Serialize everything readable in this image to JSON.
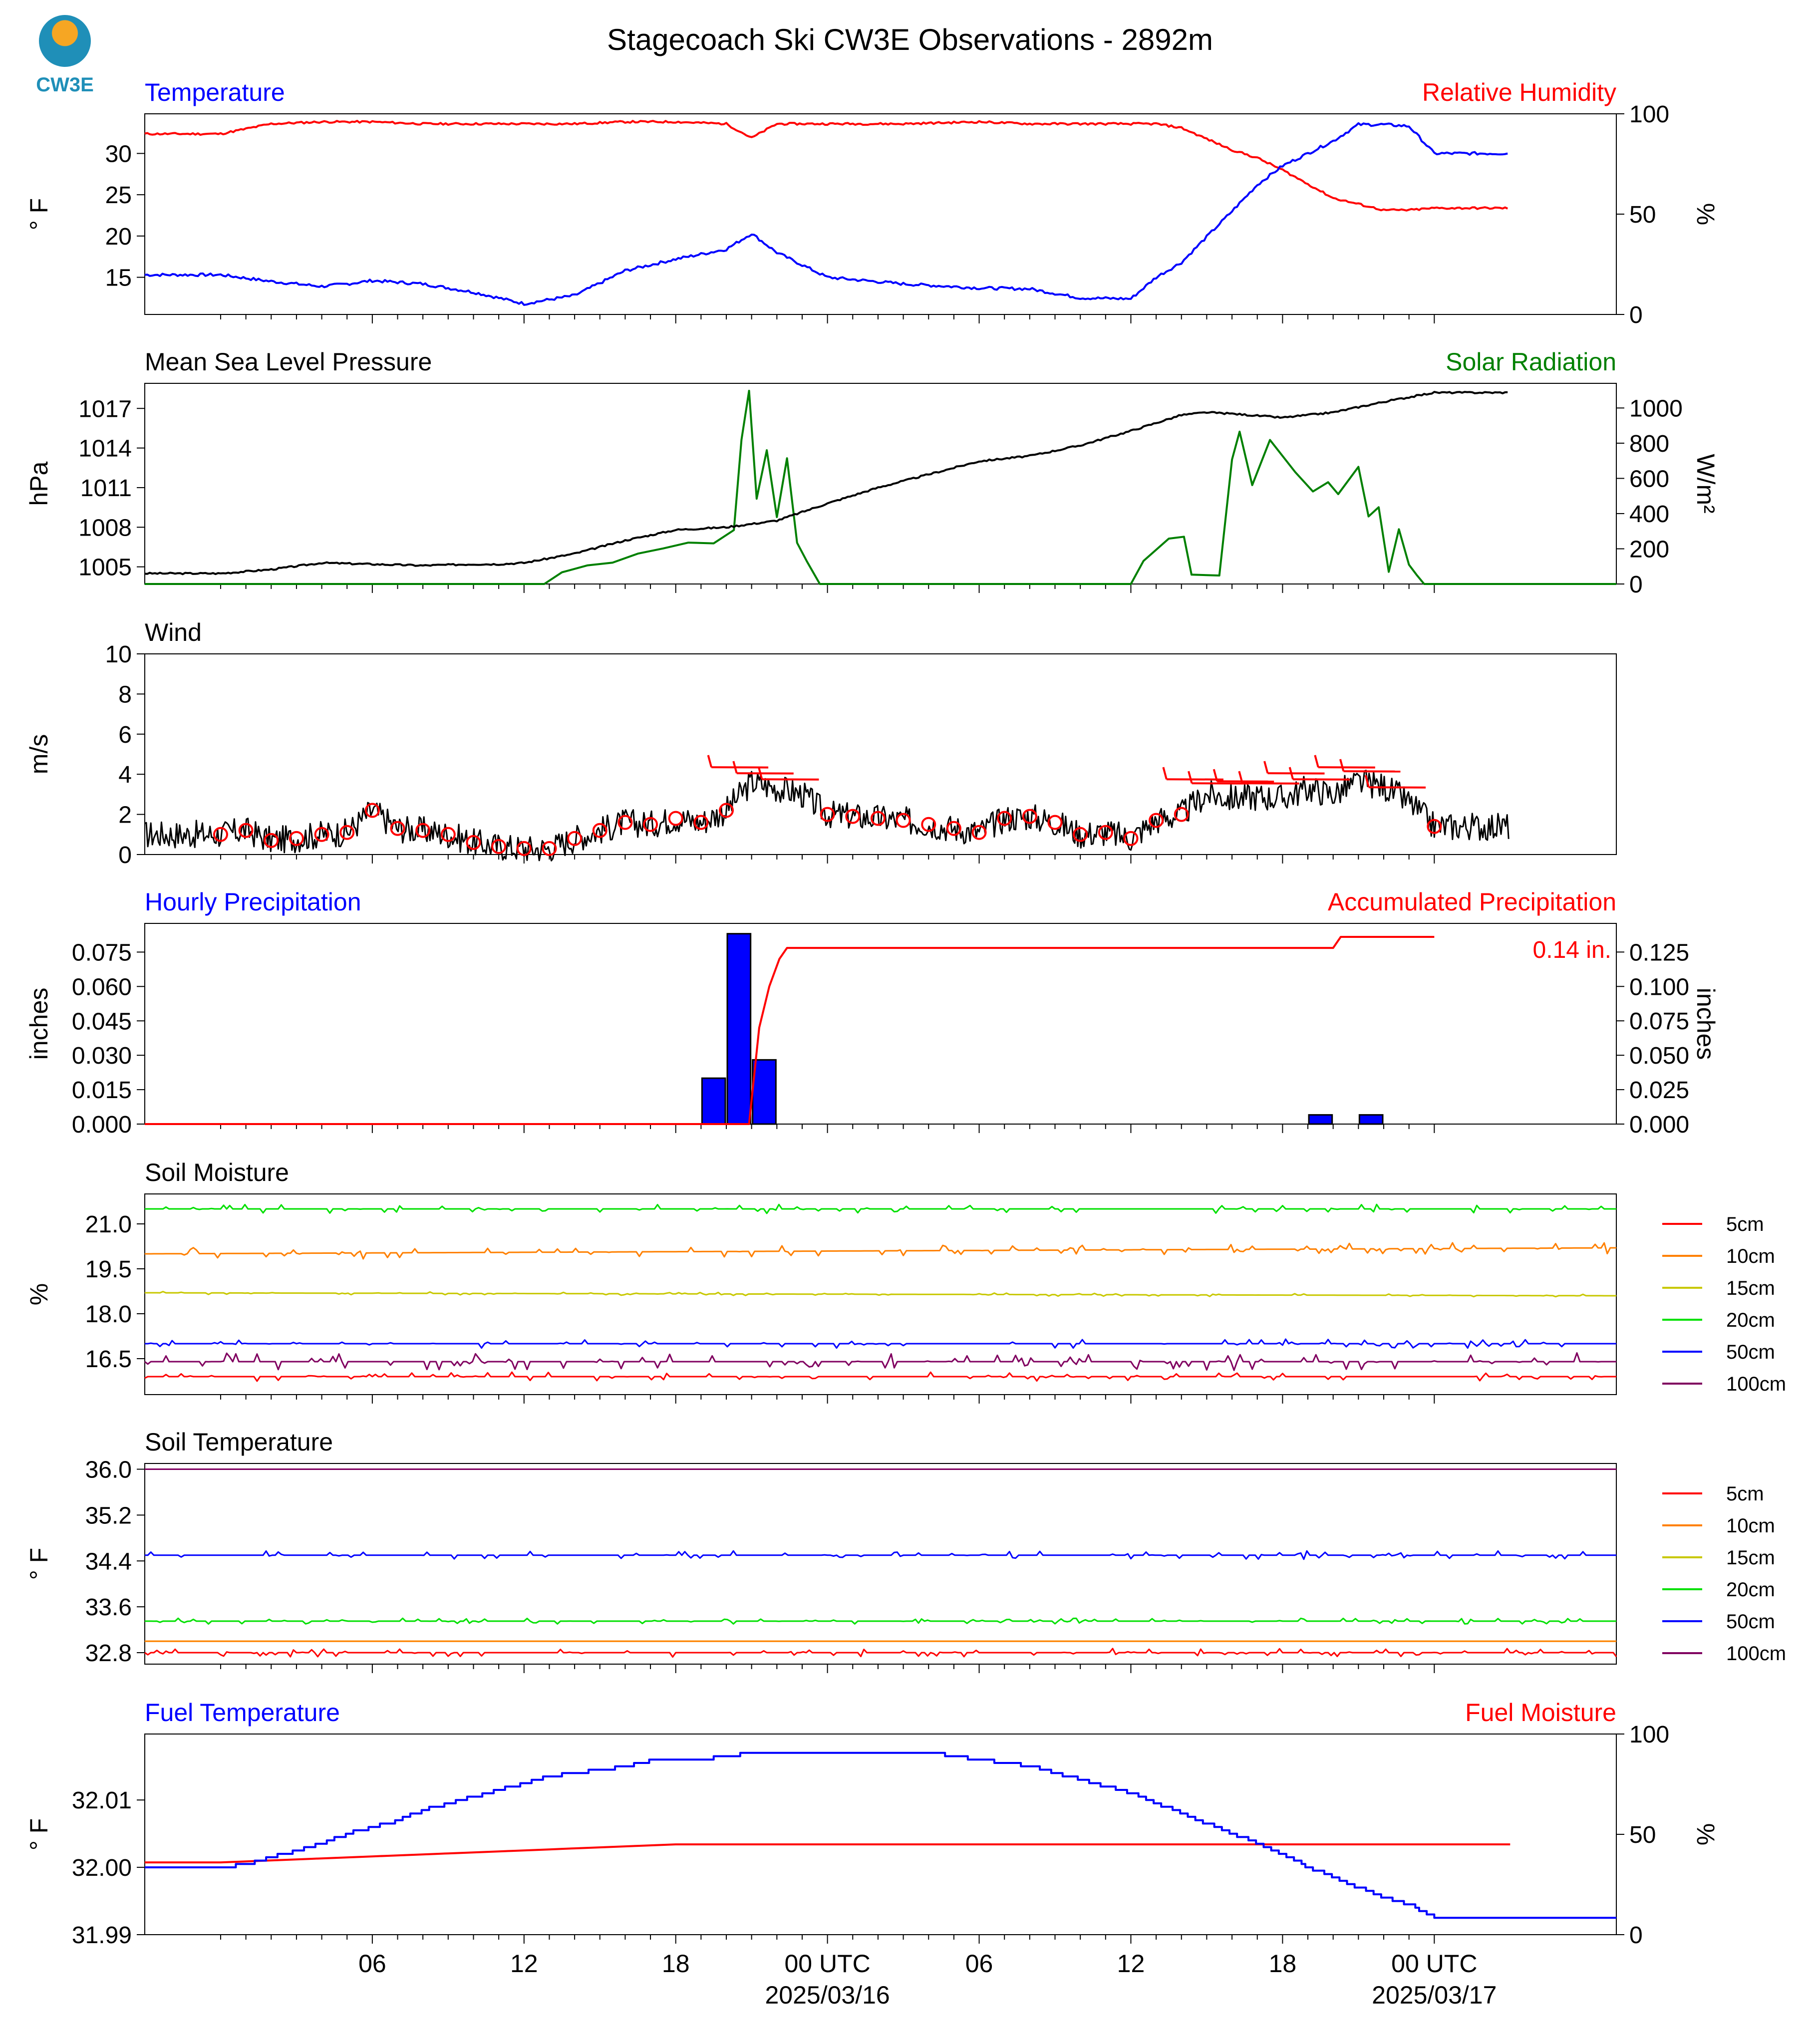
{
  "title": "Stagecoach Ski CW3E Observations - 2892m",
  "logo": {
    "text": "CW3E",
    "colors": [
      "#f6a623",
      "#1f8fb8"
    ]
  },
  "x_axis": {
    "ticks": [
      "06",
      "12",
      "18",
      "00 UTC",
      "06",
      "12",
      "18",
      "00 UTC"
    ],
    "dates": [
      "2025/03/16",
      "2025/03/17"
    ]
  },
  "colors": {
    "temperature": "#0000ff",
    "humidity": "#ff0000",
    "pressure": "#000000",
    "solar": "#008000",
    "wind": "#000000",
    "barbs": "#ff0000",
    "precip_bar": "#0000ff",
    "accum": "#ff0000",
    "soil": {
      "5cm": "#ff0000",
      "10cm": "#ff8000",
      "15cm": "#c8c800",
      "20cm": "#00e000",
      "50cm": "#0000ff",
      "100cm": "#800060"
    }
  },
  "chart_data": [
    {
      "type": "line",
      "title_left": "Temperature",
      "title_right": "Relative Humidity",
      "ylabel": "° F",
      "ylabel_right": "%",
      "ylim": [
        10.5,
        34.8
      ],
      "ylim_right": [
        0,
        100
      ],
      "yticks": [
        "15",
        "20",
        "25",
        "30"
      ],
      "yticks_right": [
        "0",
        "50",
        "100"
      ],
      "x_hours": [
        0,
        2,
        4,
        5,
        6,
        8,
        10,
        12,
        14,
        16,
        18,
        20,
        21,
        22,
        24,
        27,
        30,
        32,
        34,
        36,
        37,
        38,
        40,
        41,
        42,
        43,
        44,
        45,
        46,
        47,
        48
      ],
      "series": [
        {
          "name": "Temperature",
          "axis": "left",
          "values": [
            15.3,
            14.5,
            13.9,
            14.2,
            14.6,
            14.2,
            13.2,
            11.8,
            12.8,
            15.8,
            17.2,
            18.4,
            20.3,
            18.0,
            15.0,
            14.2,
            13.7,
            13.6,
            12.5,
            12.4,
            15.0,
            16.8,
            23.0,
            26.2,
            28.5,
            30.0,
            31.5,
            33.5,
            33.5,
            33.3,
            30.0
          ]
        },
        {
          "name": "Relative Humidity",
          "axis": "right",
          "values": [
            90,
            95,
            96,
            96,
            96,
            95,
            95,
            95,
            95,
            96,
            96,
            95,
            88,
            95,
            95,
            95,
            96,
            95,
            95,
            95,
            95,
            93,
            82,
            78,
            72,
            65,
            58,
            55,
            52,
            52,
            53
          ]
        }
      ]
    },
    {
      "type": "line",
      "title_left": "Mean Sea Level Pressure",
      "title_right": "Solar Radiation",
      "ylabel": "hPa",
      "ylabel_right": "W/m²",
      "ylim": [
        1003.7,
        1018.9
      ],
      "ylim_right": [
        0,
        1140
      ],
      "yticks": [
        "1005",
        "1008",
        "1011",
        "1014",
        "1017"
      ],
      "yticks_right": [
        "0",
        "200",
        "400",
        "600",
        "800",
        "1000"
      ],
      "x_hours": [
        0,
        2,
        4,
        6,
        8,
        10,
        11,
        12,
        14,
        16,
        18,
        20,
        22,
        24,
        26,
        28,
        30,
        32,
        34,
        36,
        38,
        39,
        40,
        42,
        44,
        46,
        48
      ],
      "series": [
        {
          "name": "Mean Sea Level Pressure",
          "axis": "left",
          "values": [
            1004.5,
            1004.8,
            1005.3,
            1005.2,
            1005.1,
            1005.2,
            1005.2,
            1005.3,
            1006.0,
            1007.0,
            1007.8,
            1008.0,
            1008.5,
            1009.8,
            1011.0,
            1012.0,
            1013.0,
            1013.4,
            1014.2,
            1015.3,
            1016.5,
            1016.7,
            1016.6,
            1016.3,
            1016.7,
            1017.5,
            1018.2
          ]
        },
        {
          "name": "Solar Radiation",
          "axis": "right",
          "points": [
            [
              0,
              0
            ],
            [
              12.8,
              0
            ],
            [
              13.5,
              70
            ],
            [
              14.5,
              90
            ],
            [
              15.5,
              120
            ],
            [
              16.5,
              160
            ],
            [
              17.5,
              200
            ],
            [
              18.5,
              240
            ],
            [
              19.5,
              250
            ],
            [
              20.3,
              320
            ],
            [
              20.6,
              800
            ],
            [
              20.9,
              1100
            ],
            [
              21.2,
              500
            ],
            [
              21.6,
              750
            ],
            [
              22.0,
              380
            ],
            [
              22.4,
              700
            ],
            [
              22.8,
              250
            ],
            [
              23.2,
              120
            ],
            [
              23.7,
              0
            ],
            [
              36.0,
              0
            ],
            [
              36.5,
              120
            ],
            [
              37.5,
              260
            ],
            [
              38.1,
              280
            ],
            [
              38.4,
              60
            ],
            [
              39.5,
              60
            ],
            [
              40.0,
              700
            ],
            [
              40.3,
              850
            ],
            [
              40.8,
              550
            ],
            [
              41.5,
              820
            ],
            [
              42.5,
              620
            ],
            [
              43.2,
              520
            ],
            [
              43.8,
              560
            ],
            [
              44.2,
              500
            ],
            [
              45.0,
              680
            ],
            [
              45.4,
              380
            ],
            [
              45.8,
              420
            ],
            [
              46.2,
              60
            ],
            [
              46.6,
              300
            ],
            [
              47.0,
              100
            ],
            [
              47.3,
              40
            ],
            [
              47.6,
              0
            ]
          ]
        }
      ]
    },
    {
      "type": "line",
      "title_left": "Wind",
      "ylabel": "m/s",
      "ylim": [
        0,
        10
      ],
      "yticks": [
        "0",
        "2",
        "4",
        "6",
        "8",
        "10"
      ],
      "x_hours": [
        0,
        1,
        2,
        3,
        4,
        5,
        6,
        7,
        8,
        9,
        10,
        11,
        12,
        13,
        14,
        15,
        16,
        17,
        18,
        19,
        20,
        21,
        22,
        23,
        24,
        25,
        26,
        27,
        28,
        29,
        30,
        31,
        32,
        33,
        34,
        35,
        36,
        37,
        38,
        39,
        40,
        41,
        42,
        43,
        44,
        45,
        46,
        47,
        48
      ],
      "series": [
        {
          "name": "Wind Speed",
          "values": [
            1.0,
            1.2,
            0.7,
            0.8,
            1.0,
            1.1,
            2.2,
            1.3,
            1.2,
            1.0,
            0.6,
            0.4,
            0.3,
            0.3,
            0.8,
            1.2,
            1.6,
            1.5,
            1.8,
            1.6,
            2.2,
            3.6,
            3.3,
            3.0,
            2.0,
            1.9,
            1.8,
            1.7,
            1.5,
            1.3,
            1.1,
            1.8,
            1.9,
            1.6,
            1.0,
            1.1,
            0.8,
            1.7,
            2.0,
            3.0,
            2.8,
            2.9,
            2.8,
            3.3,
            3.0,
            3.6,
            3.4,
            2.6,
            1.4
          ]
        }
      ],
      "barb_hours": [
        0,
        1,
        2,
        3,
        4,
        5,
        6,
        7,
        8,
        9,
        10,
        11,
        12,
        13,
        14,
        15,
        16,
        17,
        18,
        19,
        20,
        21,
        22,
        23,
        24,
        25,
        26,
        27,
        28,
        29,
        30,
        31,
        32,
        33,
        34,
        35,
        36,
        37,
        38,
        39,
        40,
        41,
        42,
        43,
        44,
        45,
        46,
        47,
        48
      ]
    },
    {
      "type": "bar",
      "title_left": "Hourly Precipitation",
      "title_right": "Accumulated Precipitation",
      "ylabel": "inches",
      "ylabel_right": "inches",
      "ylim": [
        0,
        0.0875
      ],
      "ylim_right": [
        0,
        0.1458
      ],
      "yticks": [
        "0.000",
        "0.015",
        "0.030",
        "0.045",
        "0.060",
        "0.075"
      ],
      "yticks_right": [
        "0.000",
        "0.025",
        "0.050",
        "0.075",
        "0.100",
        "0.125"
      ],
      "bars": [
        {
          "hour": 20,
          "value": 0.02
        },
        {
          "hour": 21,
          "value": 0.083
        },
        {
          "hour": 22,
          "value": 0.028
        },
        {
          "hour": 44,
          "value": 0.004
        },
        {
          "hour": 46,
          "value": 0.004
        }
      ],
      "series": [
        {
          "name": "Accumulated Precipitation",
          "points": [
            [
              0,
              0
            ],
            [
              20.9,
              0
            ],
            [
              21.3,
              0.07
            ],
            [
              21.7,
              0.1
            ],
            [
              22.1,
              0.12
            ],
            [
              22.4,
              0.128
            ],
            [
              44.0,
              0.128
            ],
            [
              44.3,
              0.136
            ],
            [
              48,
              0.136
            ]
          ]
        }
      ],
      "annotation": "0.14 in."
    },
    {
      "type": "line",
      "title_left": "Soil Moisture",
      "ylabel": "%",
      "ylim": [
        15.3,
        22.0
      ],
      "yticks": [
        "16.5",
        "18.0",
        "19.5",
        "21.0"
      ],
      "series": [
        {
          "name": "5cm",
          "values": [
            15.9,
            15.9
          ]
        },
        {
          "name": "10cm",
          "values": [
            20.0,
            20.2
          ]
        },
        {
          "name": "15cm",
          "values": [
            18.7,
            18.6
          ]
        },
        {
          "name": "20cm",
          "values": [
            21.5,
            21.5
          ]
        },
        {
          "name": "50cm",
          "values": [
            17.0,
            17.0
          ]
        },
        {
          "name": "100cm",
          "values": [
            16.4,
            16.4
          ]
        }
      ]
    },
    {
      "type": "line",
      "title_left": "Soil Temperature",
      "ylabel": "° F",
      "ylim": [
        32.6,
        36.1
      ],
      "yticks": [
        "32.8",
        "33.6",
        "34.4",
        "35.2",
        "36.0"
      ],
      "series": [
        {
          "name": "5cm",
          "values": [
            32.8,
            32.8
          ]
        },
        {
          "name": "10cm",
          "values": [
            33.0,
            33.0
          ]
        },
        {
          "name": "15cm",
          "values": [
            33.0,
            33.0
          ]
        },
        {
          "name": "20cm",
          "values": [
            33.35,
            33.35
          ]
        },
        {
          "name": "50cm",
          "values": [
            34.5,
            34.5
          ]
        },
        {
          "name": "100cm",
          "values": [
            36.0,
            36.0
          ]
        }
      ]
    },
    {
      "type": "line",
      "title_left": "Fuel Temperature",
      "title_right": "Fuel Moisture",
      "ylabel": "° F",
      "ylabel_right": "%",
      "ylim": [
        31.99,
        32.0198
      ],
      "ylim_right": [
        0,
        100
      ],
      "yticks": [
        "31.99",
        "32.00",
        "32.01"
      ],
      "yticks_right": [
        "0",
        "50",
        "100"
      ],
      "x_hours": [
        0,
        1,
        2,
        3,
        4,
        5,
        6,
        7,
        8,
        9,
        10,
        11,
        12,
        13,
        14,
        15,
        16,
        17,
        18,
        19,
        20,
        21,
        22,
        23,
        24,
        25,
        26,
        27,
        28,
        29,
        30,
        31,
        32,
        33,
        34,
        35,
        36,
        37,
        38,
        39,
        40,
        41,
        42,
        43,
        44,
        45,
        46,
        47,
        48
      ],
      "series": [
        {
          "name": "Fuel Temperature",
          "axis": "left",
          "values": [
            32.0,
            32.0005,
            32.0015,
            32.0025,
            32.0035,
            32.005,
            32.006,
            32.007,
            32.0085,
            32.0095,
            32.0105,
            32.0115,
            32.0125,
            32.0135,
            32.014,
            32.0145,
            32.015,
            32.0158,
            32.016,
            32.016,
            32.0165,
            32.017,
            32.0172,
            32.0172,
            32.0172,
            32.0172,
            32.0172,
            32.0172,
            32.0172,
            32.0165,
            32.016,
            32.0155,
            32.015,
            32.014,
            32.013,
            32.012,
            32.011,
            32.0095,
            32.008,
            32.0065,
            32.005,
            32.0035,
            32.002,
            32.0,
            31.9985,
            31.997,
            31.9955,
            31.9945,
            31.9925
          ]
        },
        {
          "name": "Fuel Moisture",
          "axis": "right",
          "values": [
            36,
            36.5,
            37,
            37.5,
            38,
            38.5,
            39,
            39.5,
            40,
            40.5,
            41,
            41.5,
            42,
            42.5,
            43,
            43.5,
            44,
            44.5,
            45,
            45,
            45,
            45,
            45,
            45,
            45,
            45,
            45,
            45,
            45,
            45,
            45,
            45,
            45,
            45,
            45,
            45,
            45,
            45,
            45,
            45,
            45,
            45,
            45,
            45,
            45,
            45,
            45,
            45,
            45
          ]
        }
      ]
    }
  ],
  "legend": [
    "5cm",
    "10cm",
    "15cm",
    "20cm",
    "50cm",
    "100cm"
  ]
}
